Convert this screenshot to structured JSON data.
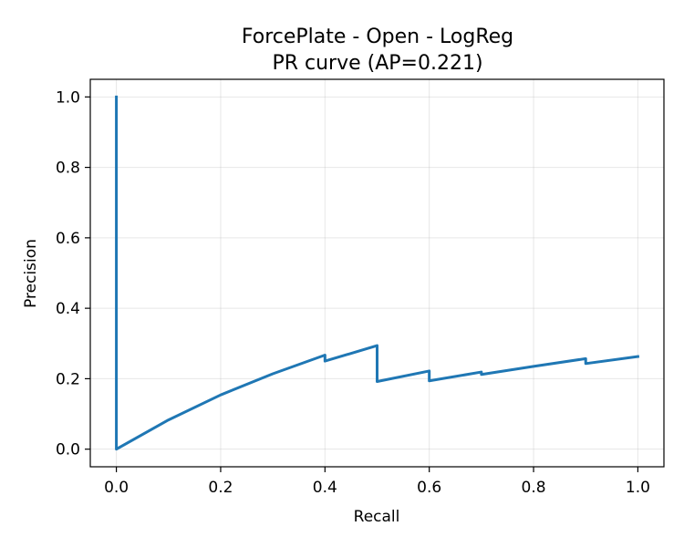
{
  "chart_data": {
    "type": "line",
    "title": "ForcePlate - Open - LogReg",
    "subtitle": "PR curve (AP=0.221)",
    "xlabel": "Recall",
    "ylabel": "Precision",
    "xlim": [
      -0.05,
      1.05
    ],
    "ylim": [
      -0.05,
      1.05
    ],
    "xticks": [
      0.0,
      0.2,
      0.4,
      0.6,
      0.8,
      1.0
    ],
    "yticks": [
      0.0,
      0.2,
      0.4,
      0.6,
      0.8,
      1.0
    ],
    "xtick_labels": [
      "0.0",
      "0.2",
      "0.4",
      "0.6",
      "0.8",
      "1.0"
    ],
    "ytick_labels": [
      "0.0",
      "0.2",
      "0.4",
      "0.6",
      "0.8",
      "1.0"
    ],
    "grid": true,
    "legend": "none",
    "series": [
      {
        "color": "#1f77b4",
        "x": [
          0.0,
          0.0,
          0.1,
          0.2,
          0.3,
          0.4,
          0.4,
          0.5,
          0.5,
          0.6,
          0.6,
          0.7,
          0.7,
          0.8,
          0.9,
          0.9,
          1.0
        ],
        "y": [
          1.0,
          0.0,
          0.083,
          0.154,
          0.214,
          0.267,
          0.25,
          0.294,
          0.192,
          0.222,
          0.194,
          0.219,
          0.212,
          0.235,
          0.257,
          0.243,
          0.263
        ]
      }
    ]
  }
}
